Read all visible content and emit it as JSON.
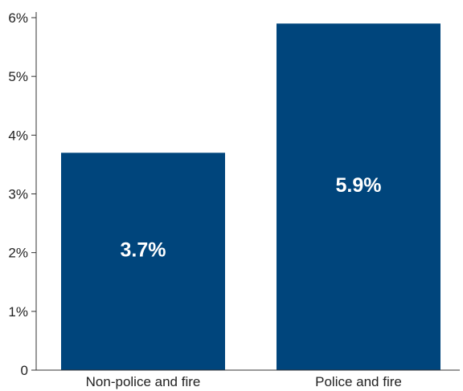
{
  "chart_data": {
    "type": "bar",
    "categories": [
      "Non-police and fire",
      "Police and fire"
    ],
    "values": [
      3.7,
      5.9
    ],
    "data_labels": [
      "3.7%",
      "5.9%"
    ],
    "ylim": [
      0,
      6
    ],
    "yticks": [
      0,
      1,
      2,
      3,
      4,
      5,
      6
    ],
    "ytick_labels": [
      "0",
      "1%",
      "2%",
      "3%",
      "4%",
      "5%",
      "6%"
    ],
    "grid": false,
    "legend": "none",
    "colors": {
      "bar": "#00457c",
      "data_label": "#ffffff"
    }
  }
}
